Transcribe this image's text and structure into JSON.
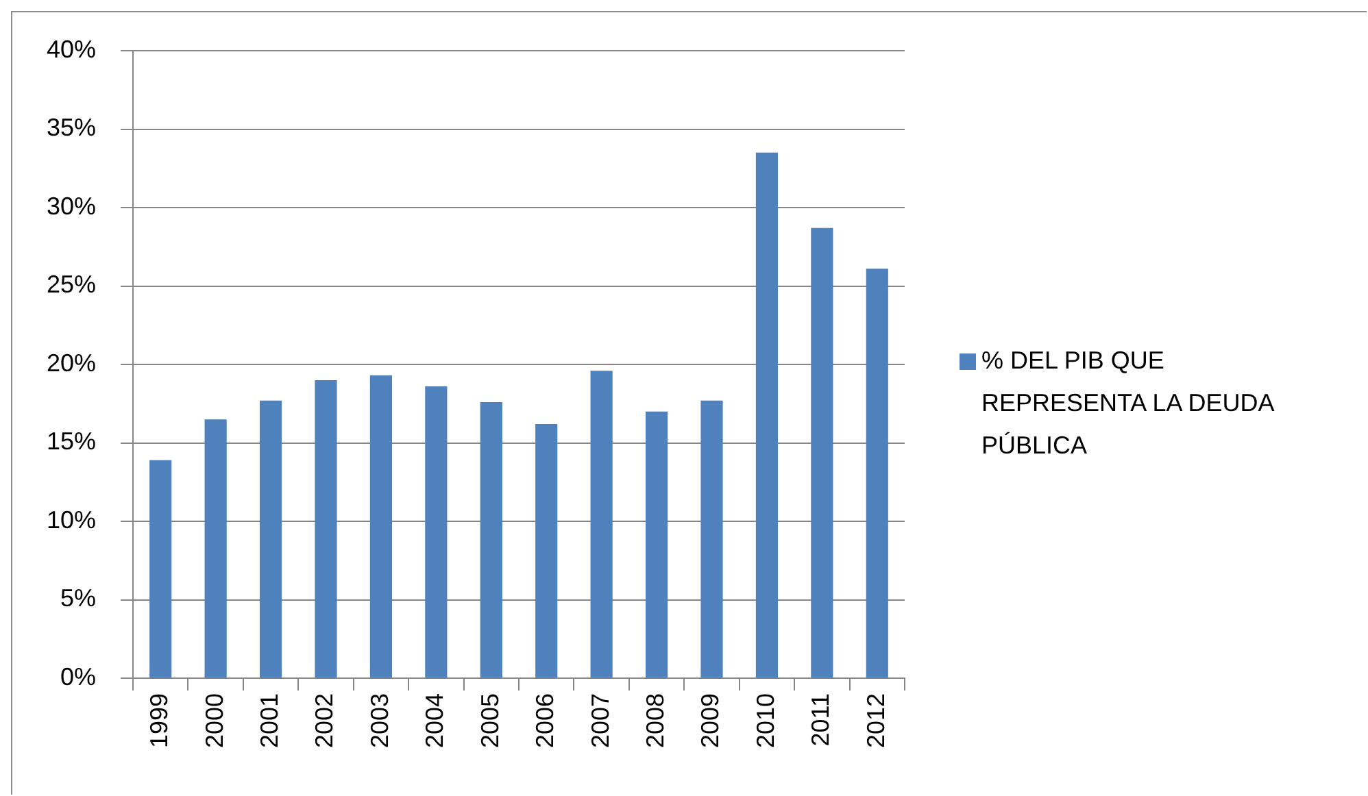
{
  "chart_data": {
    "type": "bar",
    "categories": [
      "1999",
      "2000",
      "2001",
      "2002",
      "2003",
      "2004",
      "2005",
      "2006",
      "2007",
      "2008",
      "2009",
      "2010",
      "2011",
      "2012"
    ],
    "series": [
      {
        "name": "% DEL PIB QUE REPRESENTA LA DEUDA PÚBLICA",
        "color": "#4f81bd",
        "values": [
          13.9,
          16.5,
          17.7,
          19.0,
          19.3,
          18.6,
          17.6,
          16.2,
          19.6,
          17.0,
          17.7,
          33.5,
          28.7,
          26.1
        ]
      }
    ],
    "ylim": [
      0,
      40
    ],
    "yticks": [
      {
        "value": 0,
        "label": "0%"
      },
      {
        "value": 5,
        "label": "5%"
      },
      {
        "value": 10,
        "label": "10%"
      },
      {
        "value": 15,
        "label": "15%"
      },
      {
        "value": 20,
        "label": "20%"
      },
      {
        "value": 25,
        "label": "25%"
      },
      {
        "value": 30,
        "label": "30%"
      },
      {
        "value": 35,
        "label": "35%"
      },
      {
        "value": 40,
        "label": "40%"
      }
    ],
    "grid": "y",
    "legend": "right"
  }
}
